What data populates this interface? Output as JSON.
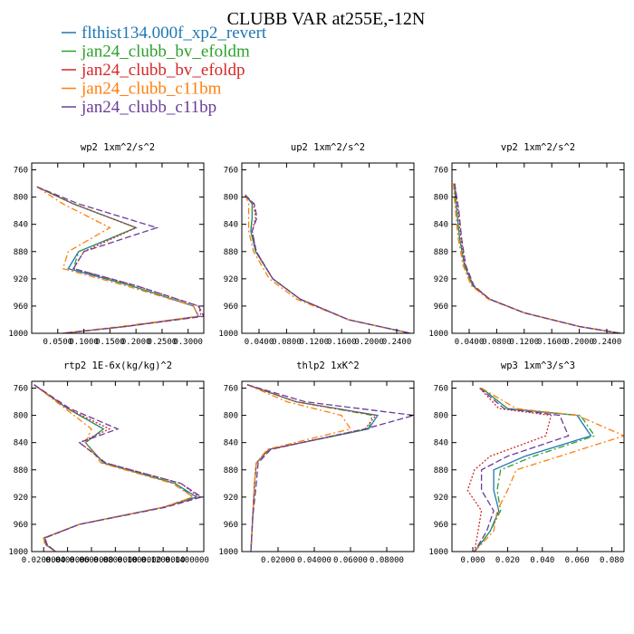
{
  "figure": {
    "title": "CLUBB VAR at255E,-12N"
  },
  "legend": [
    {
      "name": "flthist134.000f_xp2_revert",
      "color": "#1f77b4",
      "dash": "solid"
    },
    {
      "name": "jan24_clubb_bv_efoldm",
      "color": "#2ca02c",
      "dash": "dashdot"
    },
    {
      "name": "jan24_clubb_bv_efoldp",
      "color": "#d62728",
      "dash": "dot"
    },
    {
      "name": "jan24_clubb_c11bm",
      "color": "#ff7f0e",
      "dash": "dashdot"
    },
    {
      "name": "jan24_clubb_c11bp",
      "color": "#6a3d9a",
      "dash": "dash"
    }
  ],
  "chart_data": [
    {
      "type": "line",
      "title": "wp2  1xm^2/s^2",
      "xlim": [
        0,
        0.33
      ],
      "ylim": [
        1000,
        750
      ],
      "xticks": [
        0.05,
        0.1,
        0.15,
        0.2,
        0.25,
        0.3
      ],
      "xtick_labels": [
        "0.0500",
        "0.1000",
        "0.1500",
        "0.2000",
        "0.2500",
        "0.3000"
      ],
      "yticks": [
        760,
        800,
        840,
        880,
        920,
        960,
        1000
      ],
      "ytick_labels": [
        "760",
        "800",
        "840",
        "880",
        "920",
        "960",
        "1000"
      ],
      "y": [
        785,
        810,
        845,
        880,
        905,
        930,
        960,
        975,
        990,
        1000
      ],
      "series": [
        {
          "name": "flthist134.000f_xp2_revert",
          "values": [
            0.01,
            0.08,
            0.2,
            0.09,
            0.07,
            0.19,
            0.31,
            0.32,
            0.18,
            0.06
          ]
        },
        {
          "name": "jan24_clubb_bv_efoldm",
          "values": [
            0.01,
            0.08,
            0.2,
            0.09,
            0.08,
            0.19,
            0.31,
            0.32,
            0.18,
            0.06
          ]
        },
        {
          "name": "jan24_clubb_bv_efoldp",
          "values": [
            0.01,
            0.08,
            0.2,
            0.1,
            0.08,
            0.2,
            0.32,
            0.325,
            0.18,
            0.06
          ]
        },
        {
          "name": "jan24_clubb_c11bm",
          "values": [
            0.01,
            0.06,
            0.15,
            0.07,
            0.06,
            0.18,
            0.31,
            0.32,
            0.17,
            0.06
          ]
        },
        {
          "name": "jan24_clubb_c11bp",
          "values": [
            0.01,
            0.09,
            0.24,
            0.1,
            0.08,
            0.2,
            0.32,
            0.33,
            0.18,
            0.06
          ]
        }
      ]
    },
    {
      "type": "line",
      "title": "up2  1xm^2/s^2",
      "xlim": [
        0.015,
        0.265
      ],
      "ylim": [
        1000,
        750
      ],
      "xticks": [
        0.04,
        0.08,
        0.12,
        0.16,
        0.2,
        0.24
      ],
      "xtick_labels": [
        "0.0400",
        "0.0800",
        "0.1200",
        "0.1600",
        "0.2000",
        "0.2400"
      ],
      "yticks": [
        760,
        800,
        840,
        880,
        920,
        960,
        1000
      ],
      "ytick_labels": [
        "760",
        "800",
        "840",
        "880",
        "920",
        "960",
        "1000"
      ],
      "y": [
        797,
        810,
        830,
        850,
        880,
        920,
        950,
        980,
        1000
      ],
      "series": [
        {
          "name": "flthist134.000f_xp2_revert",
          "values": [
            0.02,
            0.03,
            0.03,
            0.028,
            0.035,
            0.06,
            0.1,
            0.17,
            0.26
          ]
        },
        {
          "name": "jan24_clubb_bv_efoldm",
          "values": [
            0.02,
            0.03,
            0.03,
            0.028,
            0.035,
            0.06,
            0.1,
            0.17,
            0.26
          ]
        },
        {
          "name": "jan24_clubb_bv_efoldp",
          "values": [
            0.02,
            0.032,
            0.035,
            0.03,
            0.036,
            0.06,
            0.1,
            0.17,
            0.26
          ]
        },
        {
          "name": "jan24_clubb_c11bm",
          "values": [
            0.02,
            0.025,
            0.025,
            0.025,
            0.032,
            0.055,
            0.095,
            0.17,
            0.26
          ]
        },
        {
          "name": "jan24_clubb_c11bp",
          "values": [
            0.02,
            0.033,
            0.037,
            0.03,
            0.036,
            0.06,
            0.1,
            0.17,
            0.26
          ]
        }
      ]
    },
    {
      "type": "line",
      "title": "vp2  1xm^2/s^2",
      "xlim": [
        0.015,
        0.265
      ],
      "ylim": [
        1000,
        750
      ],
      "xticks": [
        0.04,
        0.08,
        0.12,
        0.16,
        0.2,
        0.24
      ],
      "xtick_labels": [
        "0.0400",
        "0.0800",
        "0.1200",
        "0.1600",
        "0.2000",
        "0.2400"
      ],
      "yticks": [
        760,
        800,
        840,
        880,
        920,
        960,
        1000
      ],
      "ytick_labels": [
        "760",
        "800",
        "840",
        "880",
        "920",
        "960",
        "1000"
      ],
      "y": [
        780,
        820,
        860,
        900,
        930,
        950,
        970,
        990,
        1000
      ],
      "series": [
        {
          "name": "flthist134.000f_xp2_revert",
          "values": [
            0.018,
            0.022,
            0.026,
            0.033,
            0.045,
            0.07,
            0.12,
            0.2,
            0.26
          ]
        },
        {
          "name": "jan24_clubb_bv_efoldm",
          "values": [
            0.018,
            0.022,
            0.026,
            0.033,
            0.045,
            0.07,
            0.12,
            0.2,
            0.26
          ]
        },
        {
          "name": "jan24_clubb_bv_efoldp",
          "values": [
            0.019,
            0.024,
            0.028,
            0.034,
            0.046,
            0.07,
            0.12,
            0.2,
            0.26
          ]
        },
        {
          "name": "jan24_clubb_c11bm",
          "values": [
            0.017,
            0.02,
            0.024,
            0.031,
            0.043,
            0.068,
            0.12,
            0.2,
            0.26
          ]
        },
        {
          "name": "jan24_clubb_c11bp",
          "values": [
            0.019,
            0.025,
            0.029,
            0.035,
            0.047,
            0.07,
            0.12,
            0.2,
            0.26
          ]
        }
      ]
    },
    {
      "type": "line",
      "title": "rtp2  1E-6x(kg/kg)^2",
      "xlim": [
        0.01,
        0.154
      ],
      "ylim": [
        1000,
        750
      ],
      "xticks": [
        0.02,
        0.04,
        0.06,
        0.08,
        0.1,
        0.12,
        0.14
      ],
      "xtick_labels": [
        "0.0200000",
        "0.0400000",
        "0.0600000",
        "0.0800000",
        "0.1000000",
        "0.1200000",
        "0.1400000"
      ],
      "yticks": [
        760,
        800,
        840,
        880,
        920,
        960,
        1000
      ],
      "ytick_labels": [
        "760",
        "800",
        "840",
        "880",
        "920",
        "960",
        "1000"
      ],
      "y": [
        755,
        790,
        820,
        840,
        870,
        900,
        920,
        935,
        960,
        980,
        990,
        1000
      ],
      "series": [
        {
          "name": "flthist134.000f_xp2_revert",
          "values": [
            0.012,
            0.04,
            0.07,
            0.055,
            0.07,
            0.13,
            0.148,
            0.12,
            0.05,
            0.02,
            0.022,
            0.03
          ]
        },
        {
          "name": "jan24_clubb_bv_efoldm",
          "values": [
            0.012,
            0.04,
            0.07,
            0.055,
            0.07,
            0.13,
            0.145,
            0.12,
            0.05,
            0.02,
            0.022,
            0.03
          ]
        },
        {
          "name": "jan24_clubb_bv_efoldp",
          "values": [
            0.012,
            0.04,
            0.075,
            0.05,
            0.072,
            0.135,
            0.15,
            0.12,
            0.05,
            0.021,
            0.023,
            0.03
          ]
        },
        {
          "name": "jan24_clubb_c11bm",
          "values": [
            0.012,
            0.038,
            0.06,
            0.055,
            0.068,
            0.128,
            0.145,
            0.12,
            0.05,
            0.02,
            0.021,
            0.03
          ]
        },
        {
          "name": "jan24_clubb_c11bp",
          "values": [
            0.012,
            0.042,
            0.082,
            0.05,
            0.072,
            0.135,
            0.152,
            0.122,
            0.05,
            0.021,
            0.023,
            0.03
          ]
        }
      ]
    },
    {
      "type": "line",
      "title": "thlp2  1xK^2",
      "xlim": [
        0,
        0.095
      ],
      "ylim": [
        1000,
        750
      ],
      "xticks": [
        0.02,
        0.04,
        0.06,
        0.08
      ],
      "xtick_labels": [
        "0.02000",
        "0.04000",
        "0.06000",
        "0.08000"
      ],
      "yticks": [
        760,
        800,
        840,
        880,
        920,
        960,
        1000
      ],
      "ytick_labels": [
        "760",
        "800",
        "840",
        "880",
        "920",
        "960",
        "1000"
      ],
      "y": [
        755,
        780,
        800,
        820,
        850,
        870,
        900,
        950,
        1000
      ],
      "series": [
        {
          "name": "flthist134.000f_xp2_revert",
          "values": [
            0.003,
            0.03,
            0.075,
            0.07,
            0.015,
            0.008,
            0.007,
            0.006,
            0.005
          ]
        },
        {
          "name": "jan24_clubb_bv_efoldm",
          "values": [
            0.003,
            0.03,
            0.072,
            0.07,
            0.015,
            0.008,
            0.007,
            0.006,
            0.005
          ]
        },
        {
          "name": "jan24_clubb_bv_efoldp",
          "values": [
            0.003,
            0.03,
            0.074,
            0.068,
            0.015,
            0.008,
            0.007,
            0.006,
            0.005
          ]
        },
        {
          "name": "jan24_clubb_c11bm",
          "values": [
            0.003,
            0.025,
            0.055,
            0.06,
            0.014,
            0.008,
            0.007,
            0.006,
            0.005
          ]
        },
        {
          "name": "jan24_clubb_c11bp",
          "values": [
            0.003,
            0.035,
            0.095,
            0.068,
            0.016,
            0.009,
            0.008,
            0.006,
            0.005
          ]
        }
      ]
    },
    {
      "type": "line",
      "title": "wp3  1xm^3/s^3",
      "xlim": [
        -0.012,
        0.087
      ],
      "ylim": [
        1000,
        750
      ],
      "xticks": [
        0,
        0.02,
        0.04,
        0.06,
        0.08
      ],
      "xtick_labels": [
        "0.000",
        "0.020",
        "0.040",
        "0.060",
        "0.080"
      ],
      "yticks": [
        760,
        800,
        840,
        880,
        920,
        960,
        1000
      ],
      "ytick_labels": [
        "760",
        "800",
        "840",
        "880",
        "920",
        "960",
        "1000"
      ],
      "y": [
        760,
        790,
        800,
        830,
        860,
        880,
        910,
        940,
        970,
        1000
      ],
      "series": [
        {
          "name": "flthist134.000f_xp2_revert",
          "values": [
            0.005,
            0.02,
            0.06,
            0.068,
            0.03,
            0.012,
            0.012,
            0.015,
            0.01,
            0.001
          ]
        },
        {
          "name": "jan24_clubb_bv_efoldm",
          "values": [
            0.005,
            0.02,
            0.062,
            0.07,
            0.035,
            0.016,
            0.014,
            0.016,
            0.01,
            0.001
          ]
        },
        {
          "name": "jan24_clubb_bv_efoldp",
          "values": [
            0.004,
            0.015,
            0.045,
            0.042,
            0.01,
            0.001,
            -0.003,
            0.005,
            0.003,
            0.001
          ]
        },
        {
          "name": "jan24_clubb_c11bm",
          "values": [
            0.005,
            0.025,
            0.06,
            0.087,
            0.05,
            0.025,
            0.02,
            0.014,
            0.012,
            0.001
          ]
        },
        {
          "name": "jan24_clubb_c11bp",
          "values": [
            0.004,
            0.018,
            0.05,
            0.055,
            0.02,
            0.005,
            0.005,
            0.012,
            0.008,
            0.001
          ]
        }
      ]
    }
  ]
}
